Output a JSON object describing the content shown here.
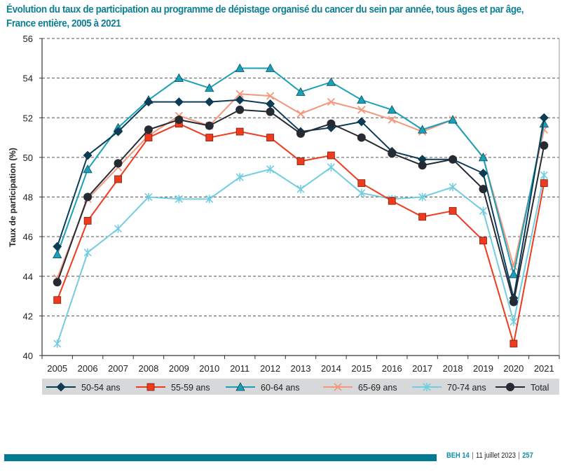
{
  "title": "Évolution du taux de participation au programme de dépistage organisé du cancer du sein par année, tous âges et par âge, France entière, 2005 à 2021",
  "footer": {
    "journal": "BEH 14",
    "date": "11 juillet 2023",
    "page": "257"
  },
  "chart_data": {
    "type": "line",
    "title": "Évolution du taux de participation au programme de dépistage organisé du cancer du sein par année, tous âges et par âge, France entière, 2005 à 2021",
    "xlabel": "",
    "ylabel": "Taux de participation (%)",
    "ylim": [
      40,
      56
    ],
    "yticks": [
      40,
      42,
      44,
      46,
      48,
      50,
      52,
      54,
      56
    ],
    "grid": "horizontal dashed",
    "legend_position": "bottom",
    "categories": [
      "2005",
      "2006",
      "2007",
      "2008",
      "2009",
      "2010",
      "2011",
      "2012",
      "2013",
      "2014",
      "2015",
      "2016",
      "2017",
      "2018",
      "2019",
      "2020",
      "2021"
    ],
    "series": [
      {
        "name": "50-54 ans",
        "marker": "diamond",
        "color": "#0b3d59",
        "values": [
          45.5,
          50.1,
          51.3,
          52.8,
          52.8,
          52.8,
          52.9,
          52.7,
          51.3,
          51.5,
          51.8,
          50.3,
          49.9,
          49.9,
          49.2,
          42.9,
          52.0
        ]
      },
      {
        "name": "55-59 ans",
        "marker": "square",
        "color": "#f03a1e",
        "values": [
          42.8,
          46.8,
          48.9,
          51.0,
          51.7,
          51.0,
          51.3,
          51.0,
          49.8,
          50.1,
          48.7,
          47.8,
          47.0,
          47.3,
          45.8,
          40.6,
          48.7
        ]
      },
      {
        "name": "60-64 ans",
        "marker": "triangle",
        "color": "#1aa0b8",
        "values": [
          45.1,
          49.4,
          51.5,
          52.9,
          54.0,
          53.5,
          54.5,
          54.5,
          53.3,
          53.8,
          52.9,
          52.4,
          51.4,
          51.9,
          50.0,
          44.1,
          51.7
        ]
      },
      {
        "name": "65-69 ans",
        "marker": "x",
        "color": "#f4977c",
        "values": [
          43.9,
          47.9,
          49.5,
          51.1,
          52.1,
          51.6,
          53.2,
          53.1,
          52.2,
          52.8,
          52.4,
          51.9,
          51.3,
          51.9,
          50.0,
          44.5,
          51.4
        ]
      },
      {
        "name": "70-74 ans",
        "marker": "asterisk",
        "color": "#72cde0",
        "values": [
          40.6,
          45.2,
          46.4,
          48.0,
          47.9,
          47.9,
          49.0,
          49.4,
          48.4,
          49.5,
          48.2,
          47.9,
          48.0,
          48.5,
          47.3,
          41.7,
          49.1
        ]
      },
      {
        "name": "Total",
        "marker": "circle",
        "color": "#262b33",
        "values": [
          43.7,
          48.0,
          49.7,
          51.4,
          51.9,
          51.6,
          52.4,
          52.3,
          51.2,
          51.7,
          51.0,
          50.2,
          49.6,
          49.9,
          48.4,
          42.7,
          50.6
        ]
      }
    ]
  }
}
